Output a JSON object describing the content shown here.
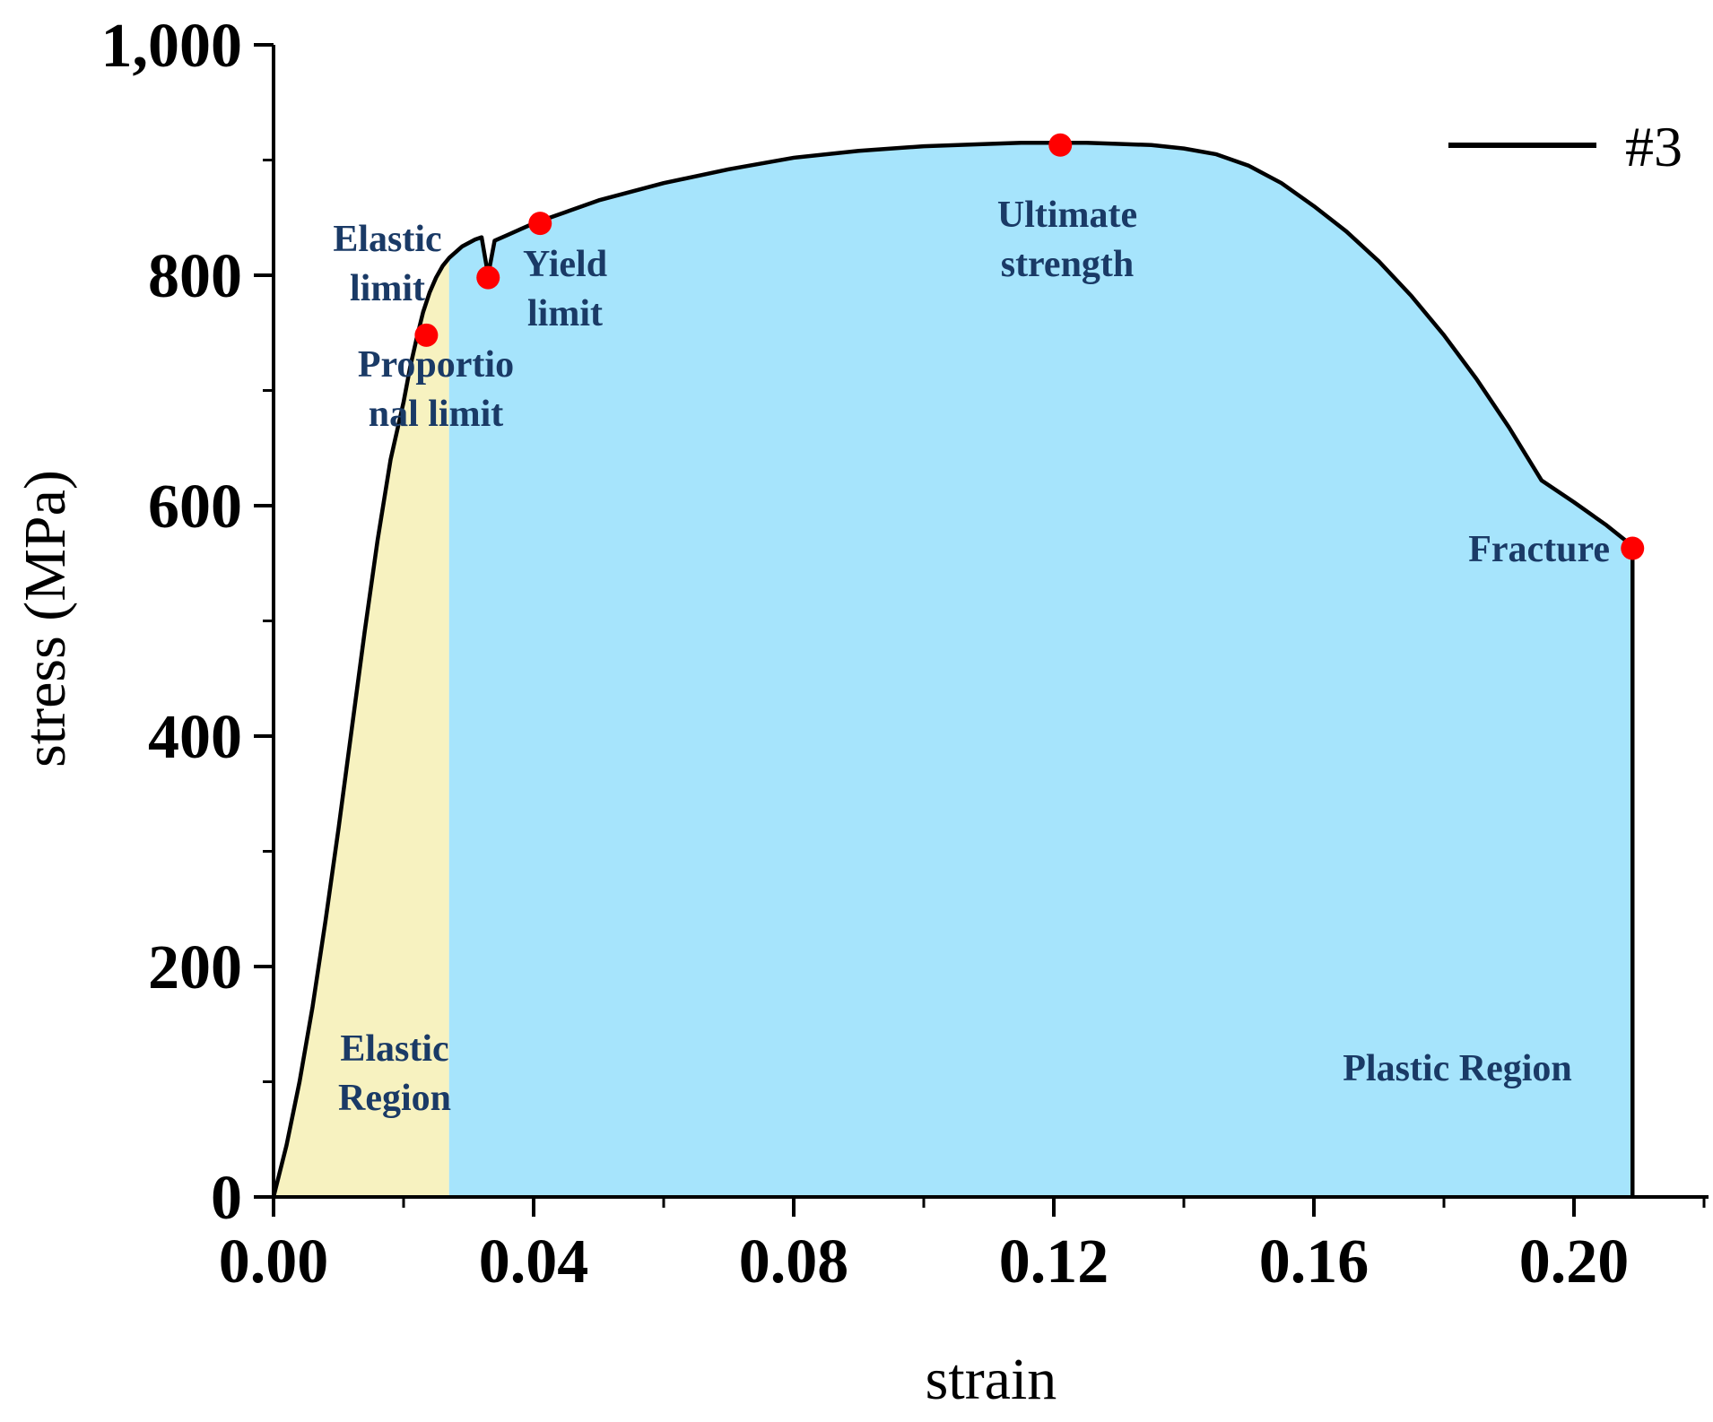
{
  "chart_data": {
    "type": "line",
    "title": "",
    "xlabel": "strain",
    "ylabel": "stress (MPa)",
    "xlim": [
      0,
      0.22
    ],
    "ylim": [
      0,
      1000
    ],
    "x_ticks": [
      0.0,
      0.04,
      0.08,
      0.12,
      0.16,
      0.2
    ],
    "x_tick_labels": [
      "0.00",
      "0.04",
      "0.08",
      "0.12",
      "0.16",
      "0.20"
    ],
    "y_ticks": [
      0,
      200,
      400,
      600,
      800,
      1000
    ],
    "y_tick_labels": [
      "0",
      "200",
      "400",
      "600",
      "800",
      "1,000"
    ],
    "x_minor_step": 0.02,
    "y_minor_step": 100,
    "grid": false,
    "legend": {
      "position": "top-right",
      "entries": [
        {
          "name": "#3",
          "color": "#000000"
        }
      ]
    },
    "series": [
      {
        "name": "#3",
        "color": "#000000",
        "x": [
          0,
          0.002,
          0.004,
          0.006,
          0.008,
          0.01,
          0.012,
          0.014,
          0.016,
          0.018,
          0.02,
          0.021,
          0.022,
          0.023,
          0.024,
          0.025,
          0.026,
          0.027,
          0.028,
          0.029,
          0.03,
          0.031,
          0.032,
          0.033,
          0.034,
          0.036,
          0.038,
          0.04,
          0.045,
          0.05,
          0.06,
          0.07,
          0.08,
          0.09,
          0.1,
          0.11,
          0.115,
          0.12,
          0.125,
          0.13,
          0.135,
          0.14,
          0.145,
          0.15,
          0.155,
          0.16,
          0.165,
          0.17,
          0.175,
          0.18,
          0.185,
          0.19,
          0.195,
          0.2,
          0.205,
          0.209
        ],
        "y": [
          0,
          45,
          100,
          165,
          240,
          320,
          405,
          490,
          570,
          640,
          690,
          720,
          745,
          768,
          785,
          798,
          808,
          815,
          820,
          825,
          828,
          831,
          833,
          800,
          830,
          835,
          840,
          845,
          855,
          865,
          880,
          892,
          902,
          908,
          912,
          914,
          915,
          915,
          915,
          914,
          913,
          910,
          905,
          895,
          880,
          860,
          838,
          812,
          782,
          748,
          710,
          668,
          622,
          603,
          583,
          565
        ]
      }
    ],
    "region_boundary_x": 0.027,
    "regions": [
      {
        "name": "Elastic Region",
        "label_lines": [
          "Elastic",
          "Region"
        ],
        "x_range": [
          0,
          0.027
        ],
        "color": "#f7f2c0"
      },
      {
        "name": "Plastic Region",
        "label_lines": [
          "Plastic  Region"
        ],
        "x_range": [
          0.027,
          0.209
        ],
        "color": "#a6e4fc"
      }
    ],
    "key_points": [
      {
        "name": "Proportional limit",
        "label_lines": [
          "Proportio",
          "nal limit"
        ],
        "x": 0.0235,
        "y": 748,
        "color": "#ff0000"
      },
      {
        "name": "Elastic limit",
        "label_lines": [
          "Elastic",
          "limit"
        ],
        "x": 0.033,
        "y": 798,
        "color": "#ff0000"
      },
      {
        "name": "Yield limit",
        "label_lines": [
          "Yield",
          "limit"
        ],
        "x": 0.041,
        "y": 845,
        "color": "#ff0000"
      },
      {
        "name": "Ultimate strength",
        "label_lines": [
          "Ultimate",
          "strength"
        ],
        "x": 0.121,
        "y": 913,
        "color": "#ff0000"
      },
      {
        "name": "Fracture",
        "label_lines": [
          "Fracture"
        ],
        "x": 0.209,
        "y": 563,
        "color": "#ff0000"
      }
    ],
    "annotation_color": "#1a3a66"
  }
}
